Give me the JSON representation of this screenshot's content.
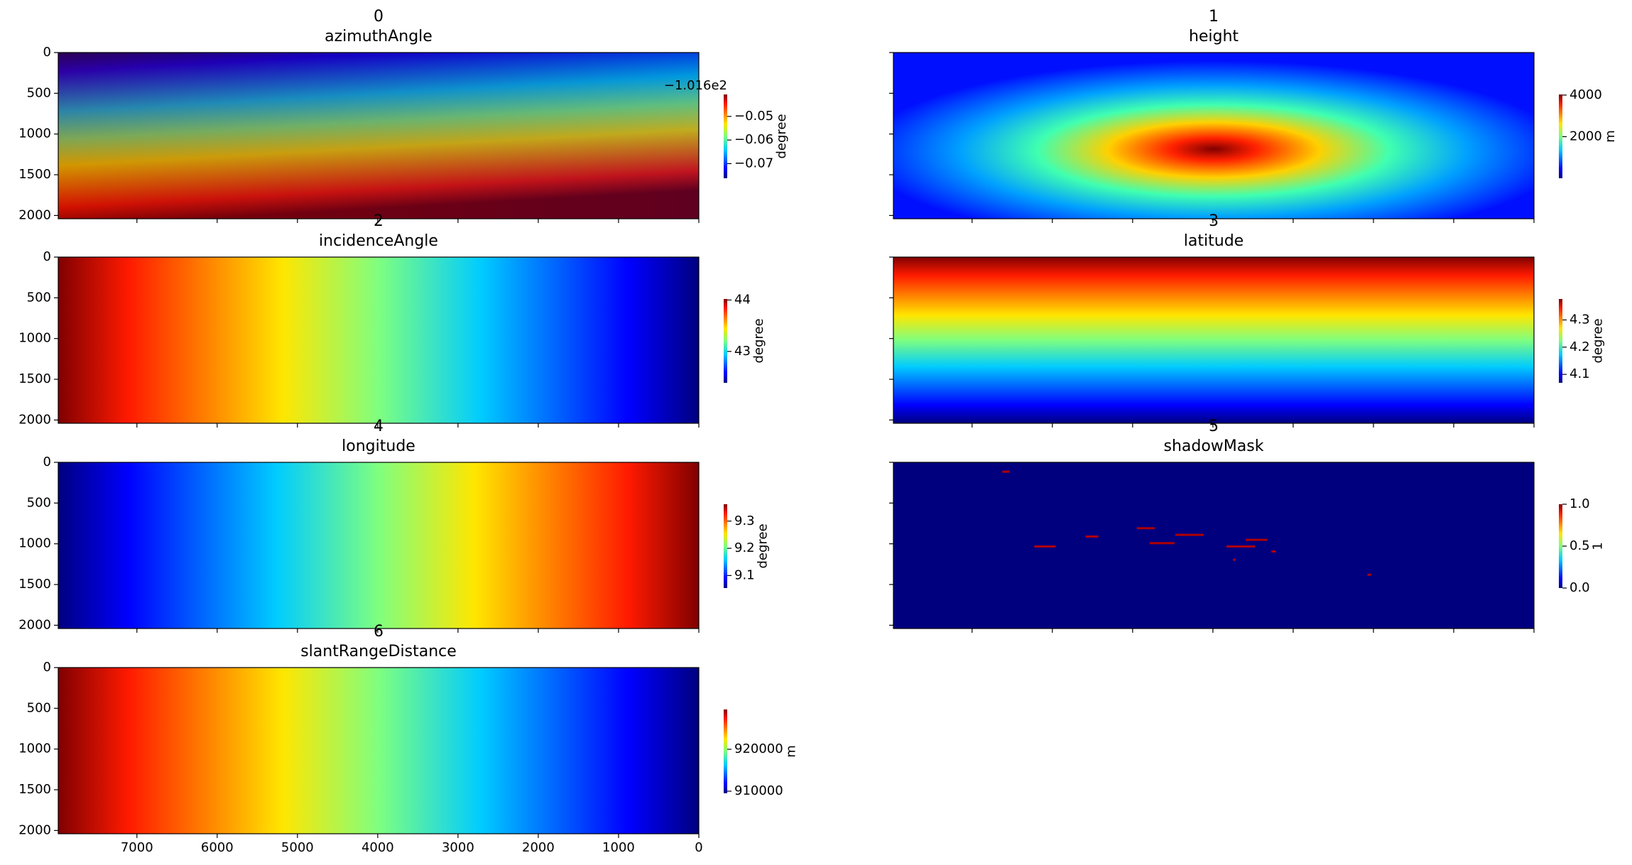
{
  "chart_data": [
    {
      "type": "image",
      "number": "0",
      "title": "azimuthAngle",
      "gradient": "diagonal",
      "clabel": "degree",
      "offset_text": "−1.016e2",
      "clim": [
        -0.0762,
        -0.0407
      ],
      "cticks": [
        {
          "value": -0.07,
          "label": "−0.07"
        },
        {
          "value": -0.06,
          "label": "−0.06"
        },
        {
          "value": -0.05,
          "label": "−0.05"
        }
      ]
    },
    {
      "type": "image",
      "number": "1",
      "title": "height",
      "gradient": "blob",
      "clabel": "m",
      "clim": [
        0,
        4030
      ],
      "cticks": [
        2000,
        4000
      ]
    },
    {
      "type": "image",
      "number": "2",
      "title": "incidenceAngle",
      "gradient": "left-high",
      "clabel": "degree",
      "clim": [
        42.39,
        44.02
      ],
      "cticks": [
        43,
        44
      ]
    },
    {
      "type": "image",
      "number": "3",
      "title": "latitude",
      "gradient": "top-high",
      "clabel": "degree",
      "clim": [
        4.069,
        4.377
      ],
      "cticks": [
        4.1,
        4.2,
        4.3
      ]
    },
    {
      "type": "image",
      "number": "4",
      "title": "longitude",
      "gradient": "right-high",
      "clabel": "degree",
      "clim": [
        9.054,
        9.362
      ],
      "cticks": [
        9.1,
        9.2,
        9.3
      ]
    },
    {
      "type": "image",
      "number": "5",
      "title": "shadowMask",
      "gradient": "mask",
      "clabel": "1",
      "clim": [
        0,
        1
      ],
      "cticks": [
        {
          "value": 0,
          "label": "0.0"
        },
        {
          "value": 0.5,
          "label": "0.5"
        },
        {
          "value": 1,
          "label": "1.0"
        }
      ]
    },
    {
      "type": "image",
      "number": "6",
      "title": "slantRangeDistance",
      "gradient": "left-high",
      "clabel": "m",
      "clim": [
        909500,
        929500
      ],
      "cticks": [
        910000,
        920000
      ]
    }
  ],
  "shared_axes": {
    "xlim": [
      7980,
      0
    ],
    "xticks": [
      7000,
      6000,
      5000,
      4000,
      3000,
      2000,
      1000,
      0
    ],
    "ylim": [
      2040,
      0
    ],
    "yticks": [
      0,
      500,
      1000,
      1500,
      2000
    ]
  }
}
